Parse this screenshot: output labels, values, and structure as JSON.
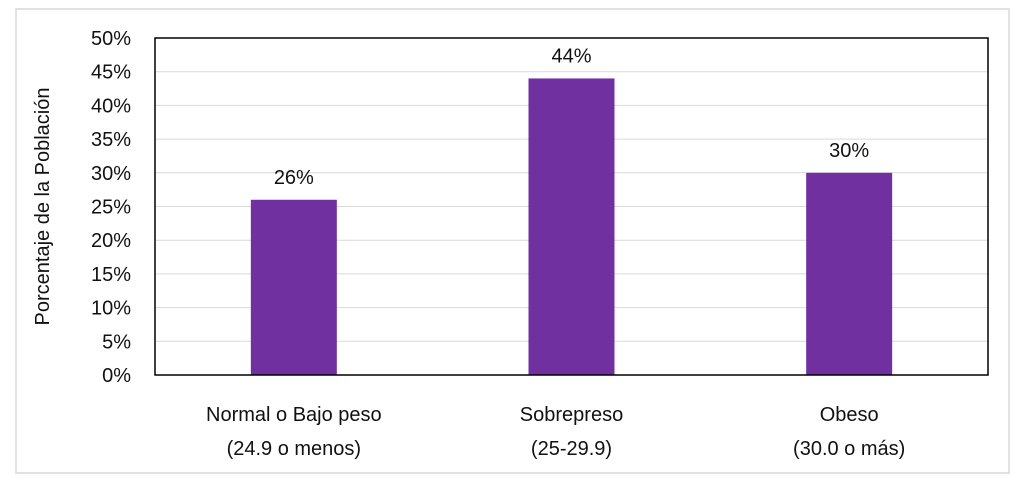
{
  "chart_data": {
    "type": "bar",
    "title": "",
    "xlabel": "",
    "ylabel": "Porcentaje de la Población",
    "ylim": [
      0,
      50
    ],
    "yticks": [
      "0%",
      "5%",
      "10%",
      "15%",
      "20%",
      "25%",
      "30%",
      "35%",
      "40%",
      "45%",
      "50%"
    ],
    "categories": [
      [
        "Normal o Bajo peso",
        "(24.9 o menos)"
      ],
      [
        "Sobrepreso",
        "(25-29.9)"
      ],
      [
        "Obeso",
        "(30.0 o más)"
      ]
    ],
    "values": [
      26,
      44,
      30
    ],
    "data_labels": [
      "26%",
      "44%",
      "30%"
    ],
    "bar_color": "#7030a0",
    "grid": true
  }
}
